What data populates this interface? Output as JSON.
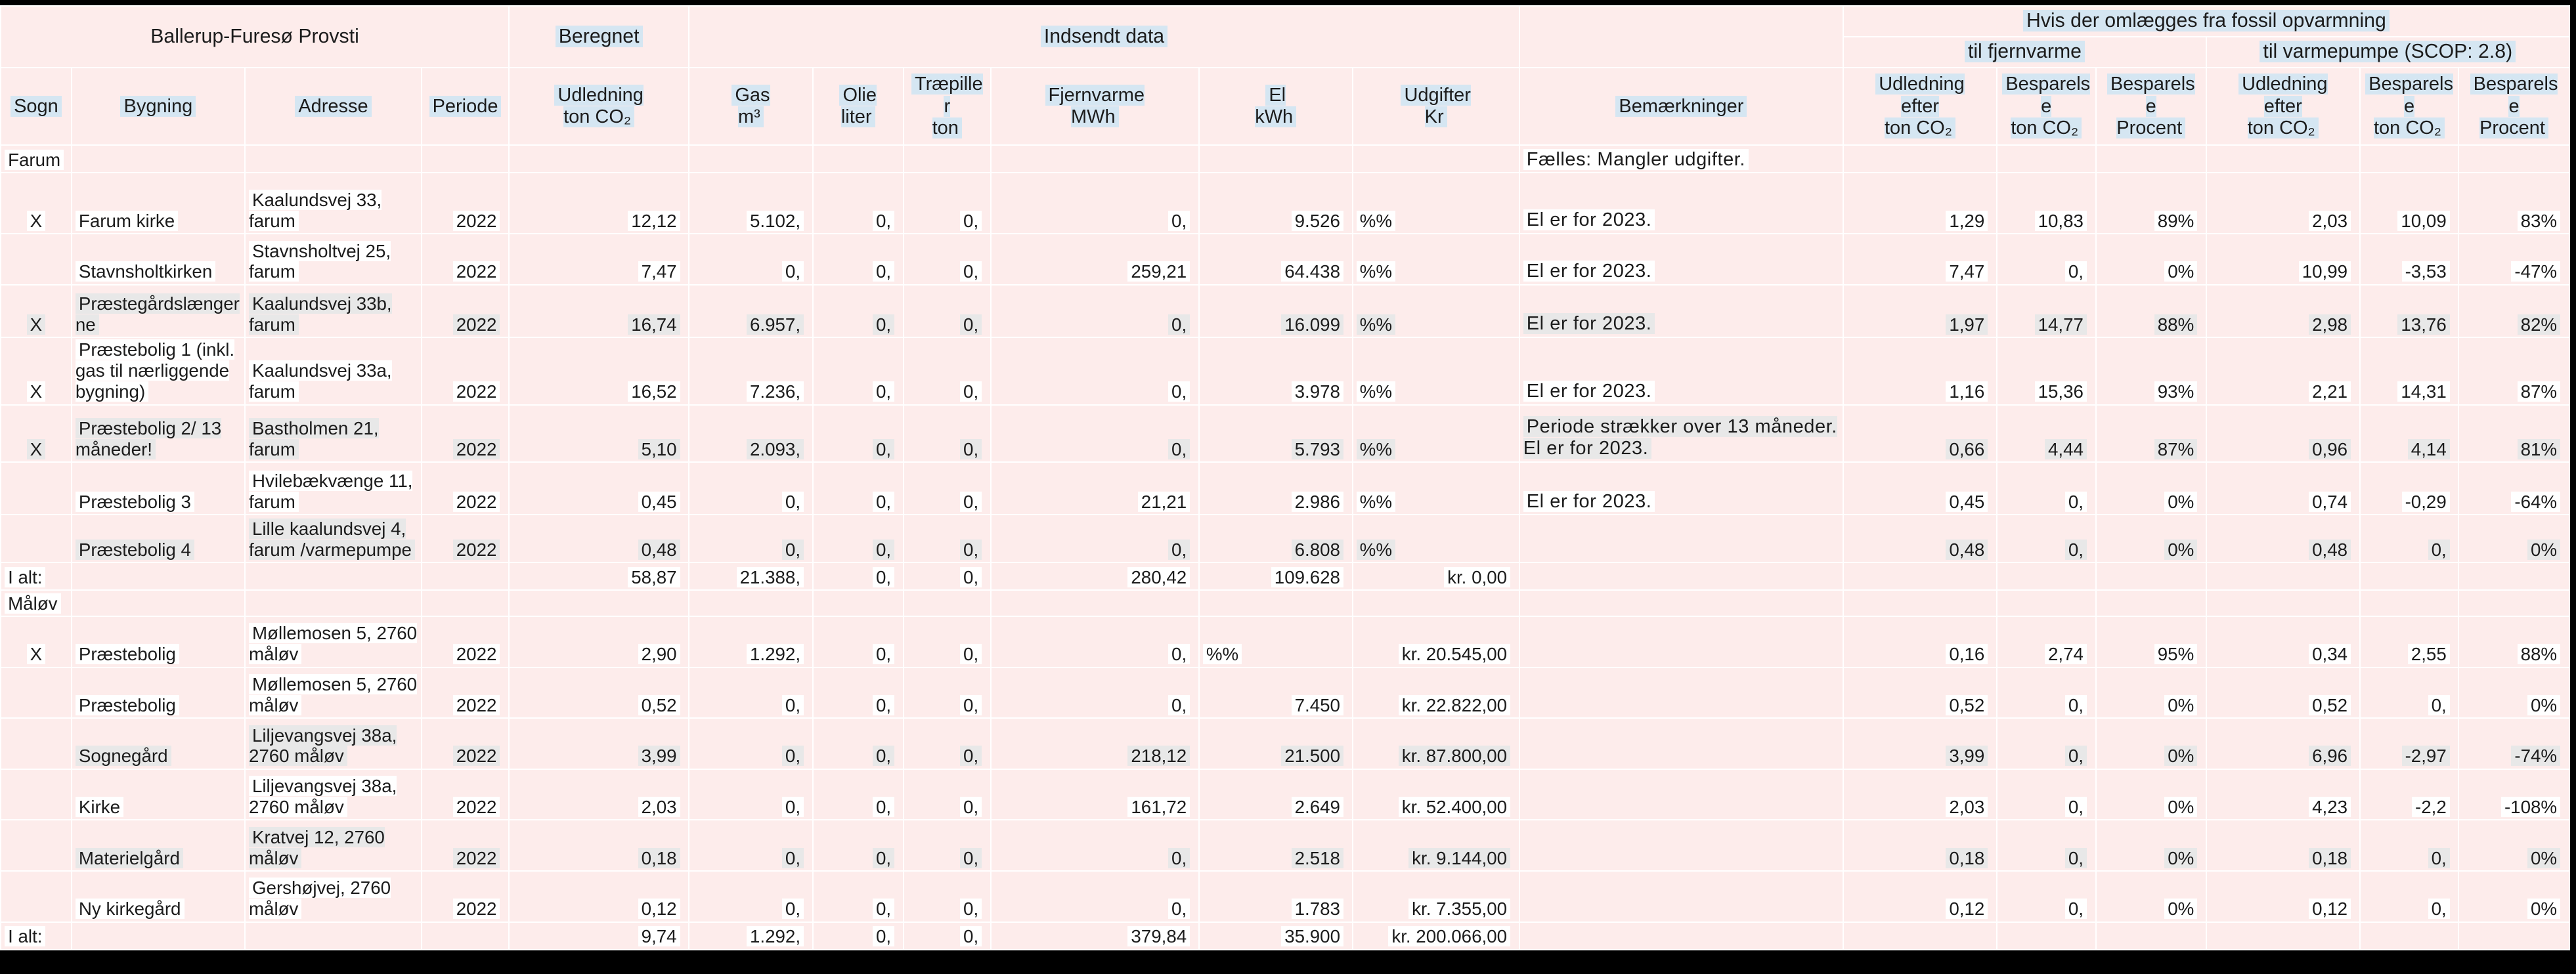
{
  "colors": {
    "cell_background": "#fdeceb",
    "header_highlight": "#d5e6f2",
    "text_highlight_white": "#ffffff",
    "text_highlight_gray": "#e8e8e8",
    "gridline": "#ffffff",
    "page_background": "#000000",
    "text": "#1c1c1c"
  },
  "table": {
    "header": {
      "provsti_title": "Ballerup-Furesø Provsti",
      "group_beregnet": "Beregnet",
      "group_indsendt": "Indsendt data",
      "group_hvis": "Hvis der omlægges fra fossil opvarmning",
      "group_fjernvarme": "til fjernvarme",
      "group_varmepumpe": "til varmepumpe (SCOP: 2.8)",
      "columns": [
        "Sogn",
        "Bygning",
        "Adresse",
        "Periode",
        "Udledning\nton CO₂",
        "Gas\nm³",
        "Olie\nliter",
        "Træpille\nr\nton",
        "Fjernvarme\nMWh",
        "El\nkWh",
        "Udgifter\nKr",
        "Bemærkninger",
        "Udledning\nefter\nton CO₂",
        "Besparels\ne\nton CO₂",
        "Besparels\ne\nProcent",
        "Udledning\nefter\nton CO₂",
        "Besparels\ne\nton CO₂",
        "Besparels\ne\nProcent"
      ]
    },
    "rows": [
      {
        "type": "section",
        "hl": "w",
        "cells": [
          "Farum",
          "",
          "",
          "",
          "",
          "",
          "",
          "",
          "",
          "",
          "",
          "Fælles: Mangler udgifter.",
          "",
          "",
          "",
          "",
          "",
          ""
        ]
      },
      {
        "type": "data",
        "hl": "w",
        "cells": [
          "X",
          "Farum kirke",
          "Kaalundsvej 33, farum",
          "2022",
          "12,12",
          "5.102,",
          "0,",
          "0,",
          "0,",
          "9.526",
          "%%",
          "El er for 2023.",
          "1,29",
          "10,83",
          "89%",
          "2,03",
          "10,09",
          "83%"
        ]
      },
      {
        "type": "data",
        "hl": "w",
        "cells": [
          "",
          "Stavnsholtkirken",
          "Stavnsholtvej 25, farum",
          "2022",
          "7,47",
          "0,",
          "0,",
          "0,",
          "259,21",
          "64.438",
          "%%",
          "El er for 2023.",
          "7,47",
          "0,",
          "0%",
          "10,99",
          "-3,53",
          "-47%"
        ]
      },
      {
        "type": "data",
        "hl": "g",
        "cells": [
          "X",
          "Præstegårdslængerne",
          "Kaalundsvej 33b, farum",
          "2022",
          "16,74",
          "6.957,",
          "0,",
          "0,",
          "0,",
          "16.099",
          "%%",
          "El er for 2023.",
          "1,97",
          "14,77",
          "88%",
          "2,98",
          "13,76",
          "82%"
        ]
      },
      {
        "type": "data",
        "hl": "w",
        "cells": [
          "X",
          "Præstebolig 1 (inkl. gas til nærliggende bygning)",
          "Kaalundsvej 33a, farum",
          "2022",
          "16,52",
          "7.236,",
          "0,",
          "0,",
          "0,",
          "3.978",
          "%%",
          "El er for 2023.",
          "1,16",
          "15,36",
          "93%",
          "2,21",
          "14,31",
          "87%"
        ]
      },
      {
        "type": "data",
        "hl": "g",
        "cells": [
          "X",
          "Præstebolig 2/ 13 måneder!",
          "Bastholmen 21, farum",
          "2022",
          "5,10",
          "2.093,",
          "0,",
          "0,",
          "0,",
          "5.793",
          "%%",
          "Periode strækker over 13 måneder. El er for 2023.",
          "0,66",
          "4,44",
          "87%",
          "0,96",
          "4,14",
          "81%"
        ]
      },
      {
        "type": "data",
        "hl": "w",
        "cells": [
          "",
          "Præstebolig 3",
          "Hvilebækvænge 11, farum",
          "2022",
          "0,45",
          "0,",
          "0,",
          "0,",
          "21,21",
          "2.986",
          "%%",
          "El er for 2023.",
          "0,45",
          "0,",
          "0%",
          "0,74",
          "-0,29",
          "-64%"
        ]
      },
      {
        "type": "data",
        "hl": "g",
        "cells": [
          "",
          "Præstebolig 4",
          "Lille kaalundsvej 4, farum /varmepumpe",
          "2022",
          "0,48",
          "0,",
          "0,",
          "0,",
          "0,",
          "6.808",
          "%%",
          "",
          "0,48",
          "0,",
          "0%",
          "0,48",
          "0,",
          "0%"
        ]
      },
      {
        "type": "total",
        "hl": "w",
        "cells": [
          "I alt:",
          "",
          "",
          "",
          "58,87",
          "21.388,",
          "0,",
          "0,",
          "280,42",
          "109.628",
          "kr. 0,00",
          "",
          "",
          "",
          "",
          "",
          "",
          ""
        ]
      },
      {
        "type": "section",
        "hl": "w",
        "cells": [
          "Måløv",
          "",
          "",
          "",
          "",
          "",
          "",
          "",
          "",
          "",
          "",
          "",
          "",
          "",
          "",
          "",
          "",
          ""
        ]
      },
      {
        "type": "data",
        "hl": "w",
        "cells": [
          "X",
          "Præstebolig",
          "Møllemosen 5, 2760 måløv",
          "2022",
          "2,90",
          "1.292,",
          "0,",
          "0,",
          "0,",
          "%%",
          "kr. 20.545,00",
          "",
          "0,16",
          "2,74",
          "95%",
          "0,34",
          "2,55",
          "88%"
        ]
      },
      {
        "type": "data",
        "hl": "w",
        "cells": [
          "",
          "Præstebolig",
          "Møllemosen 5, 2760 måløv",
          "2022",
          "0,52",
          "0,",
          "0,",
          "0,",
          "0,",
          "7.450",
          "kr. 22.822,00",
          "",
          "0,52",
          "0,",
          "0%",
          "0,52",
          "0,",
          "0%"
        ]
      },
      {
        "type": "data",
        "hl": "g",
        "cells": [
          "",
          "Sognegård",
          "Liljevangsvej 38a, 2760 måløv",
          "2022",
          "3,99",
          "0,",
          "0,",
          "0,",
          "218,12",
          "21.500",
          "kr. 87.800,00",
          "",
          "3,99",
          "0,",
          "0%",
          "6,96",
          "-2,97",
          "-74%"
        ]
      },
      {
        "type": "data",
        "hl": "w",
        "cells": [
          "",
          "Kirke",
          "Liljevangsvej 38a, 2760 måløv",
          "2022",
          "2,03",
          "0,",
          "0,",
          "0,",
          "161,72",
          "2.649",
          "kr. 52.400,00",
          "",
          "2,03",
          "0,",
          "0%",
          "4,23",
          "-2,2",
          "-108%"
        ]
      },
      {
        "type": "data",
        "hl": "g",
        "cells": [
          "",
          "Materielgård",
          "Kratvej 12, 2760 måløv",
          "2022",
          "0,18",
          "0,",
          "0,",
          "0,",
          "0,",
          "2.518",
          "kr. 9.144,00",
          "",
          "0,18",
          "0,",
          "0%",
          "0,18",
          "0,",
          "0%"
        ]
      },
      {
        "type": "data",
        "hl": "w",
        "cells": [
          "",
          "Ny kirkegård",
          "Gershøjvej, 2760 måløv",
          "2022",
          "0,12",
          "0,",
          "0,",
          "0,",
          "0,",
          "1.783",
          "kr. 7.355,00",
          "",
          "0,12",
          "0,",
          "0%",
          "0,12",
          "0,",
          "0%"
        ]
      },
      {
        "type": "total",
        "hl": "w",
        "cells": [
          "I alt:",
          "",
          "",
          "",
          "9,74",
          "1.292,",
          "0,",
          "0,",
          "379,84",
          "35.900",
          "kr. 200.066,00",
          "",
          "",
          "",
          "",
          "",
          "",
          ""
        ]
      }
    ]
  }
}
